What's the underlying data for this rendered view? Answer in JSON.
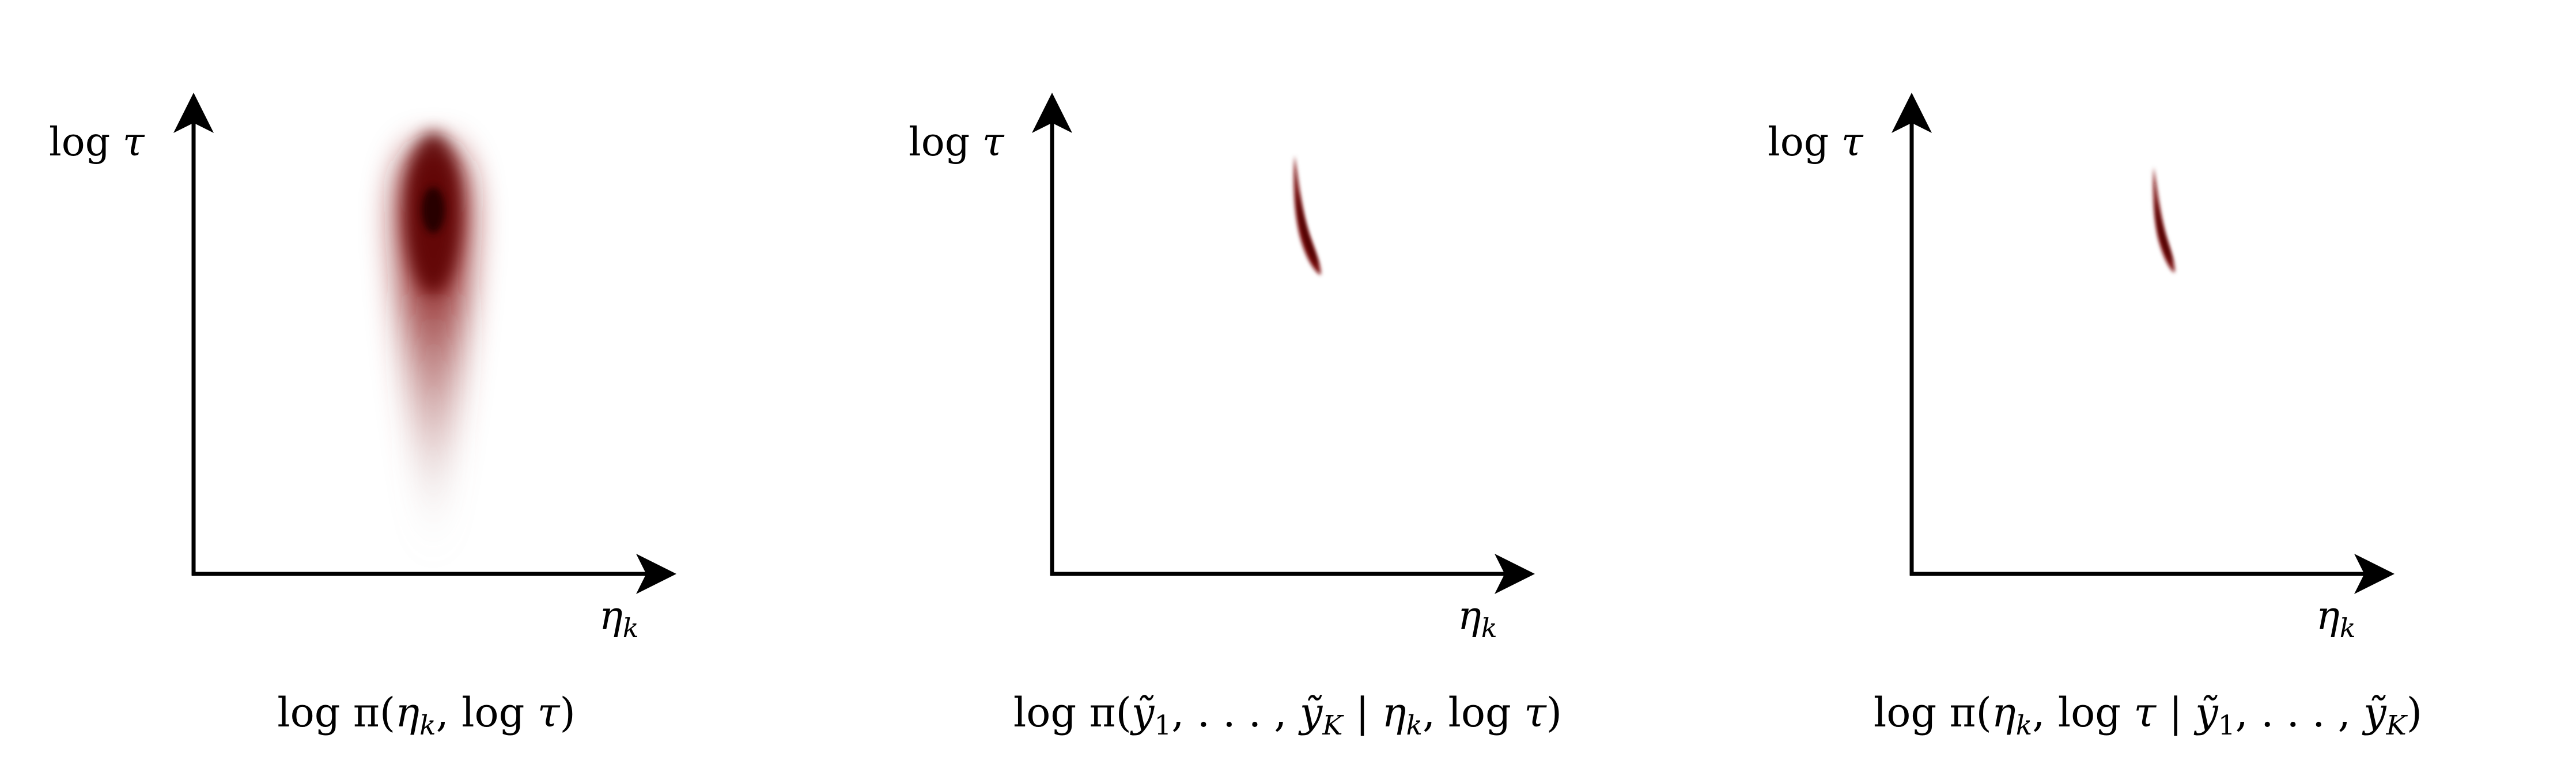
{
  "panels": [
    {
      "id": "prior",
      "y_axis_label": "log τ",
      "x_axis_label": "η_k",
      "caption": "log π(η_k, log τ)"
    },
    {
      "id": "likelihood",
      "y_axis_label": "log τ",
      "x_axis_label": "η_k",
      "caption": "log π(ỹ_1, …, ỹ_K | η_k, log τ)"
    },
    {
      "id": "posterior",
      "y_axis_label": "log τ",
      "x_axis_label": "η_k",
      "caption": "log π(η_k, log τ | ỹ_1, …, ỹ_K)"
    }
  ],
  "colors": {
    "density_peak": "#5a0000",
    "density_mid": "#8b1a1a",
    "axis": "#000000",
    "background": "#ffffff"
  }
}
